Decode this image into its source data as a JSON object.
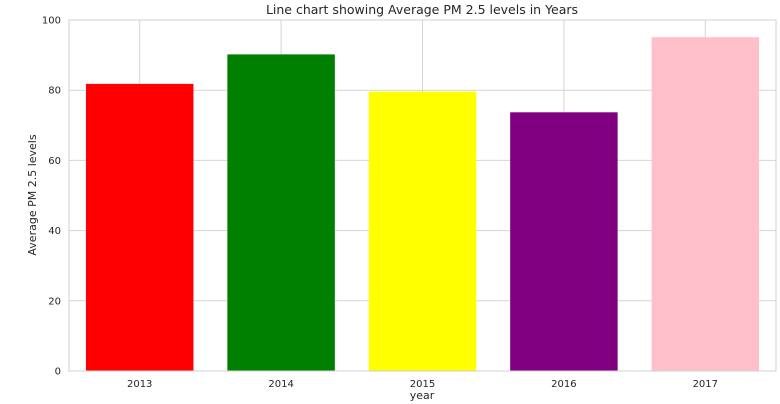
{
  "chart_data": {
    "type": "bar",
    "title": "Line chart showing Average PM 2.5 levels in Years",
    "xlabel": "year",
    "ylabel": "Average PM 2.5 levels",
    "categories": [
      "2013",
      "2014",
      "2015",
      "2016",
      "2017"
    ],
    "values": [
      81.8,
      90.2,
      79.6,
      73.7,
      95.1
    ],
    "colors": [
      "#ff0000",
      "#008000",
      "#ffff00",
      "#800080",
      "#ffc0cb"
    ],
    "ylim": [
      0,
      100
    ],
    "yticks": [
      0,
      20,
      40,
      60,
      80,
      100
    ],
    "grid": true,
    "legend": "none"
  }
}
